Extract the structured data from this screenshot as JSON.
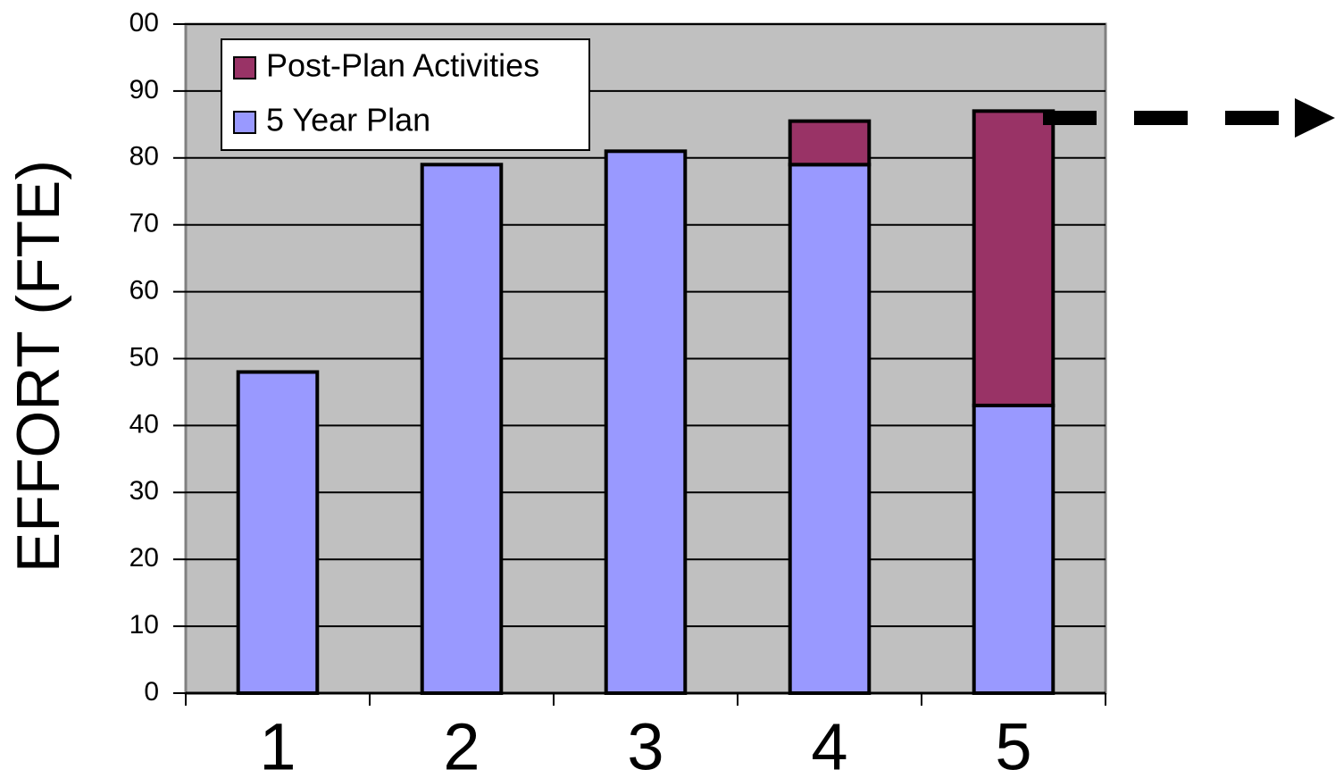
{
  "chart_data": {
    "type": "stacked_bar",
    "y_label": "EFFORT (FTE)",
    "categories": [
      "1",
      "2",
      "3",
      "4",
      "5"
    ],
    "series": [
      {
        "name": "5 Year Plan",
        "color": "#9999ff",
        "values": [
          48,
          79,
          81,
          79,
          43
        ]
      },
      {
        "name": "Post-Plan Activities",
        "color": "#993366",
        "values": [
          0,
          0,
          0,
          6.5,
          44
        ]
      }
    ],
    "ylim": [
      0,
      100
    ],
    "yticks": [
      0,
      10,
      20,
      30,
      40,
      50,
      60,
      70,
      80,
      90,
      {
        "value": 100,
        "label": "00"
      }
    ],
    "grid": true,
    "legend": "upper left"
  }
}
